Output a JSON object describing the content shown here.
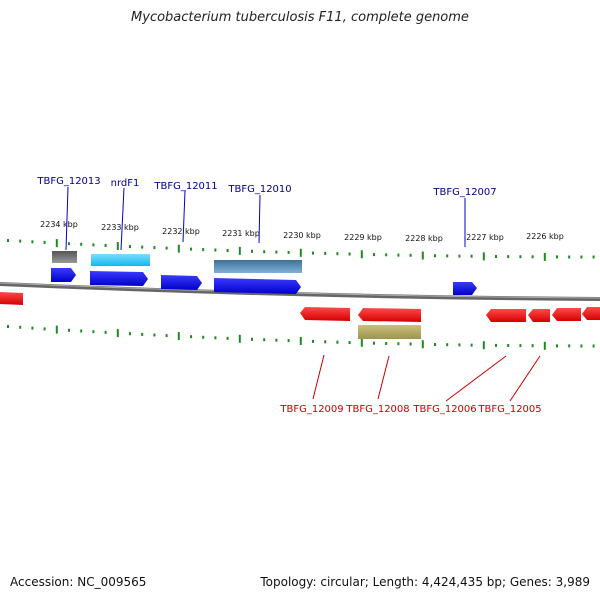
{
  "title": "Mycobacterium tuberculosis F11, complete genome",
  "footer": {
    "accession": "Accession: NC_009565",
    "summary": "Topology: circular; Length: 4,424,435 bp; Genes: 3,989"
  },
  "colors": {
    "backbone": "#777777",
    "ticks": "#1f8a1f",
    "forward_gene": "#0000ee",
    "reverse_gene": "#ee0000",
    "forward_label": "#00008b",
    "reverse_label": "#cc0000",
    "scale_label": "#111111"
  },
  "scale_labels": [
    "2234 kbp",
    "2233 kbp",
    "2232 kbp",
    "2231 kbp",
    "2230 kbp",
    "2229 kbp",
    "2228 kbp",
    "2227 kbp",
    "2226 kbp"
  ],
  "forward_gene_labels": [
    "TBFG_12013",
    "nrdF1",
    "TBFG_12011",
    "TBFG_12010",
    "TBFG_12007"
  ],
  "reverse_gene_labels": [
    "TBFG_12009",
    "TBFG_12008",
    "TBFG_12006",
    "TBFG_12005"
  ]
}
